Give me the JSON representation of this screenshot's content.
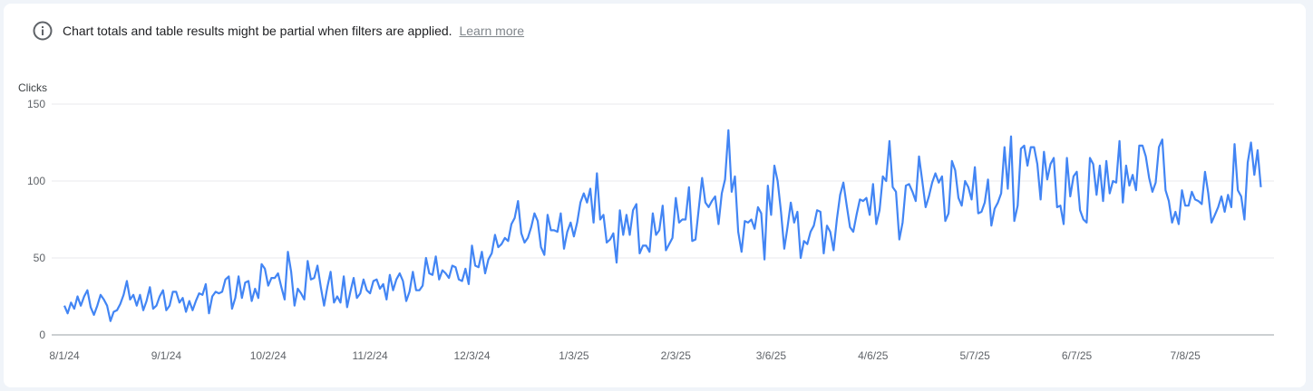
{
  "notice": {
    "icon": "info-icon",
    "text": "Chart totals and table results might be partial when filters are applied.",
    "link": "Learn more"
  },
  "chart_data": {
    "type": "line",
    "title": "",
    "ylabel": "Clicks",
    "xlabel": "",
    "ylim": [
      0,
      150
    ],
    "yticks": [
      "0",
      "50",
      "100",
      "150"
    ],
    "ytick_values": [
      0,
      50,
      100,
      150
    ],
    "x_range": [
      "8/1/24",
      "7/31/25"
    ],
    "xticks": [
      "8/1/24",
      "9/1/24",
      "10/2/24",
      "11/2/24",
      "12/3/24",
      "1/3/25",
      "2/3/25",
      "3/6/25",
      "4/6/25",
      "5/7/25",
      "6/7/25",
      "7/8/25"
    ],
    "grid": true,
    "legend": "none",
    "series": [
      {
        "color": "#4285f4",
        "values": [
          19,
          14,
          21,
          17,
          25,
          19,
          25,
          29,
          18,
          13,
          19,
          26,
          23,
          19,
          9,
          15,
          16,
          20,
          26,
          35,
          23,
          26,
          19,
          26,
          16,
          22,
          31,
          17,
          19,
          25,
          29,
          16,
          19,
          28,
          28,
          21,
          24,
          15,
          22,
          16,
          22,
          27,
          26,
          33,
          14,
          25,
          28,
          27,
          28,
          36,
          38,
          17,
          24,
          38,
          24,
          34,
          35,
          22,
          30,
          24,
          46,
          43,
          32,
          37,
          37,
          40,
          31,
          23,
          54,
          41,
          19,
          30,
          27,
          23,
          48,
          36,
          37,
          45,
          31,
          19,
          31,
          41,
          21,
          25,
          21,
          38,
          18,
          28,
          37,
          24,
          27,
          36,
          29,
          27,
          35,
          36,
          30,
          33,
          23,
          39,
          29,
          36,
          40,
          35,
          22,
          28,
          41,
          29,
          29,
          32,
          50,
          40,
          39,
          51,
          36,
          42,
          40,
          37,
          45,
          44,
          36,
          35,
          43,
          33,
          58,
          45,
          44,
          54,
          40,
          49,
          53,
          65,
          57,
          59,
          63,
          61,
          72,
          76,
          87,
          66,
          60,
          63,
          70,
          79,
          74,
          57,
          52,
          78,
          68,
          68,
          67,
          79,
          56,
          67,
          73,
          64,
          73,
          86,
          92,
          86,
          95,
          73,
          105,
          75,
          78,
          60,
          62,
          66,
          47,
          81,
          65,
          78,
          65,
          81,
          85,
          53,
          58,
          58,
          54,
          79,
          65,
          68,
          84,
          55,
          59,
          63,
          89,
          73,
          75,
          75,
          96,
          61,
          62,
          82,
          102,
          86,
          83,
          87,
          90,
          72,
          92,
          101,
          133,
          93,
          103,
          67,
          54,
          74,
          73,
          75,
          69,
          83,
          79,
          49,
          97,
          78,
          110,
          100,
          80,
          56,
          70,
          86,
          73,
          80,
          50,
          61,
          59,
          67,
          71,
          81,
          80,
          53,
          71,
          67,
          55,
          75,
          91,
          99,
          84,
          70,
          67,
          78,
          88,
          87,
          89,
          78,
          98,
          72,
          81,
          103,
          100,
          126,
          96,
          93,
          62,
          73,
          97,
          98,
          93,
          87,
          116,
          100,
          83,
          90,
          99,
          105,
          99,
          103,
          74,
          79,
          113,
          107,
          89,
          84,
          100,
          96,
          88,
          109,
          79,
          80,
          86,
          101,
          71,
          82,
          86,
          92,
          122,
          95,
          129,
          74,
          84,
          121,
          123,
          110,
          122,
          122,
          111,
          88,
          119,
          101,
          111,
          115,
          83,
          84,
          72,
          115,
          90,
          103,
          106,
          81,
          75,
          73,
          115,
          111,
          91,
          110,
          87,
          113,
          92,
          100,
          99,
          126,
          86,
          110,
          97,
          104,
          94,
          123,
          123,
          116,
          102,
          93,
          99,
          122,
          127,
          94,
          87,
          73,
          80,
          72,
          94,
          84,
          84,
          93,
          88,
          87,
          85,
          106,
          92,
          73,
          78,
          83,
          90,
          80,
          91,
          83,
          124,
          94,
          90,
          75,
          112,
          125,
          104,
          120,
          96
        ]
      }
    ]
  }
}
